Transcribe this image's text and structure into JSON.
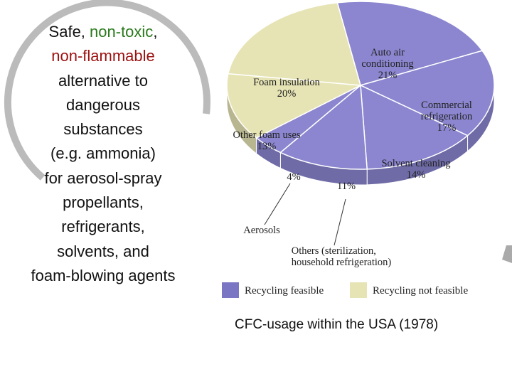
{
  "text": {
    "lines": [
      [
        {
          "text": "Safe, "
        },
        {
          "text": "non-toxic",
          "color": "#2a7a1c"
        },
        {
          "text": ","
        }
      ],
      [
        {
          "text": "non-flammable",
          "color": "#9c1010"
        }
      ],
      [
        {
          "text": "alternative to"
        }
      ],
      [
        {
          "text": "dangerous"
        }
      ],
      [
        {
          "text": "substances"
        }
      ],
      [
        {
          "text": "(e.g. ammonia)"
        }
      ],
      [
        {
          "text": "for aerosol-spray"
        }
      ],
      [
        {
          "text": "propellants,"
        }
      ],
      [
        {
          "text": "refrigerants,"
        }
      ],
      [
        {
          "text": "solvents, and"
        }
      ],
      [
        {
          "text": "foam-blowing agents"
        }
      ]
    ]
  },
  "chart_data": {
    "type": "pie",
    "title": "CFC-usage within the USA (1978)",
    "categories": [
      "Auto air\nconditioning",
      "Commercial\nrefrigeration",
      "Solvent cleaning",
      "Others (sterilization,\nhousehold refrigeration)",
      "Aerosols",
      "Other foam uses",
      "Foam insulation"
    ],
    "values": [
      21,
      17,
      14,
      11,
      4,
      13,
      20
    ],
    "value_labels": [
      "21%",
      "17%",
      "14%",
      "11%",
      "4%",
      "13%",
      "20%"
    ],
    "colors": [
      "#8b86cf",
      "#8b86cf",
      "#8b86cf",
      "#8b86cf",
      "#8b86cf",
      "#e6e4b4",
      "#e6e4b4"
    ],
    "legend": [
      {
        "name": "Recycling feasible",
        "color": "#7b76c4"
      },
      {
        "name": "Recycling not feasible",
        "color": "#e6e4b4"
      }
    ]
  }
}
